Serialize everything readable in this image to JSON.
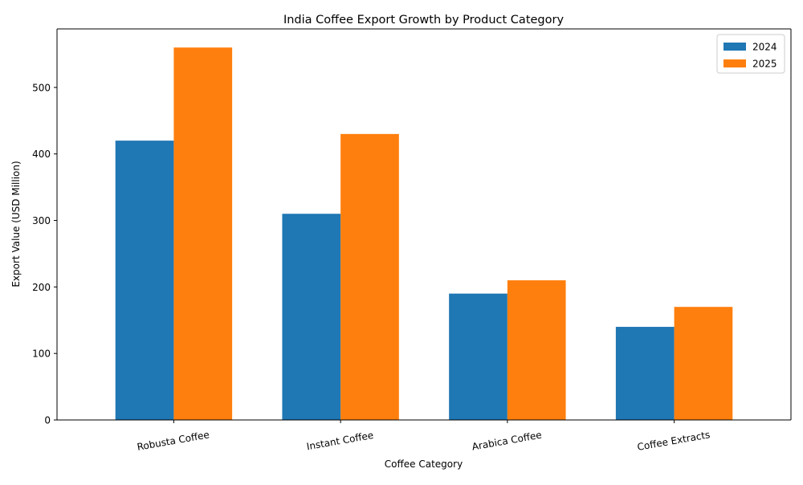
{
  "chart_data": {
    "type": "bar",
    "title": "India Coffee Export Growth by Product Category",
    "xlabel": "Coffee Category",
    "ylabel": "Export Value (USD Million)",
    "categories": [
      "Robusta Coffee",
      "Instant Coffee",
      "Arabica Coffee",
      "Coffee Extracts"
    ],
    "series": [
      {
        "name": "2024",
        "values": [
          420,
          310,
          190,
          140
        ],
        "color": "#1f77b4"
      },
      {
        "name": "2025",
        "values": [
          560,
          430,
          210,
          170
        ],
        "color": "#ff7f0e"
      }
    ],
    "ylim": [
      0,
      588
    ],
    "yticks": [
      0,
      100,
      200,
      300,
      400,
      500
    ],
    "grid": false,
    "legend_position": "top-right"
  }
}
